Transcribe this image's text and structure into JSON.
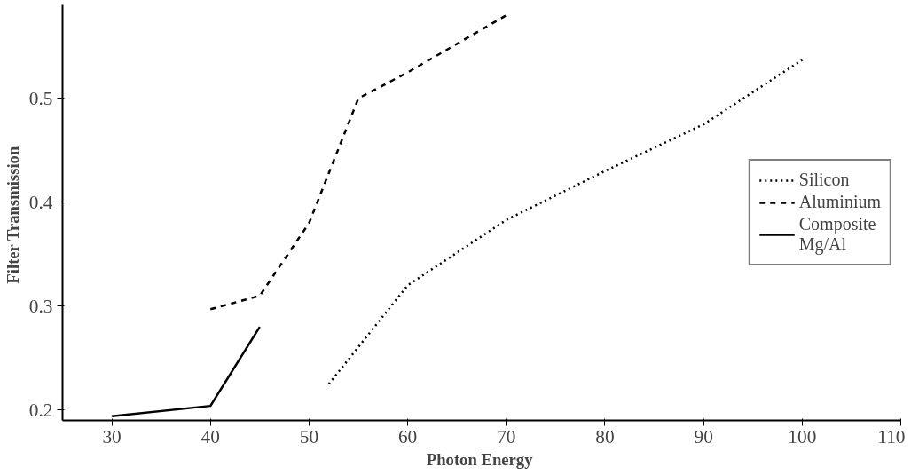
{
  "chart_data": {
    "type": "line",
    "xlabel": "Photon  Energy",
    "ylabel": "Filter  Transmission",
    "xlim": [
      25,
      110
    ],
    "ylim": [
      0.19,
      0.59
    ],
    "xticks": [
      30,
      40,
      50,
      60,
      70,
      80,
      90,
      100,
      110
    ],
    "yticks": [
      0.2,
      0.3,
      0.4,
      0.5
    ],
    "grid": false,
    "legend": "right",
    "marker": "none",
    "series": [
      {
        "name": "Silicon",
        "color": "#000000",
        "line_style": "dotted",
        "x": [
          52,
          60,
          70,
          80,
          90,
          100
        ],
        "values": [
          0.225,
          0.32,
          0.383,
          0.43,
          0.475,
          0.537
        ]
      },
      {
        "name": "Aluminium",
        "color": "#000000",
        "line_style": "dashed",
        "x": [
          40,
          45,
          50,
          55,
          60,
          70
        ],
        "values": [
          0.297,
          0.31,
          0.38,
          0.5,
          0.525,
          0.58
        ]
      },
      {
        "name": "Composite\nMg/Al",
        "color": "#000000",
        "line_style": "solid",
        "x": [
          30,
          40,
          45
        ],
        "values": [
          0.194,
          0.204,
          0.28
        ]
      }
    ]
  }
}
